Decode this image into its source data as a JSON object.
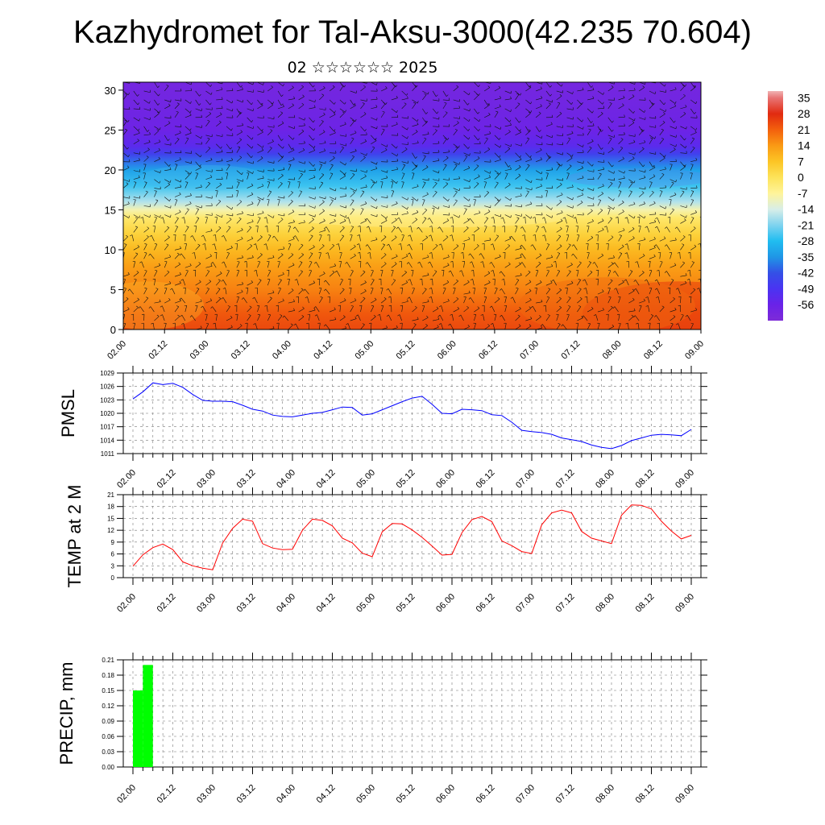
{
  "title": "Kazhydromet for Tal-Aksu-3000(42.235 70.604)",
  "subtitle": "02 ☆☆☆☆☆☆ 2025",
  "time_labels": [
    "02.00",
    "02.12",
    "03.00",
    "03.12",
    "04.00",
    "04.12",
    "05.00",
    "05.12",
    "06.00",
    "06.12",
    "07.00",
    "07.12",
    "08.00",
    "08.12",
    "09.00"
  ],
  "chart_data": [
    {
      "type": "heatmap",
      "name": "vertical cross-section",
      "xlabel": "",
      "ylabel": "",
      "ylim": [
        0,
        31
      ],
      "yticks": [
        0,
        5,
        10,
        15,
        20,
        25,
        30
      ],
      "colorbar": {
        "labels": [
          "35",
          "28",
          "21",
          "14",
          "7",
          "0",
          "-7",
          "-14",
          "-21",
          "-28",
          "-35",
          "-42",
          "-49",
          "-56"
        ],
        "range": [
          -63,
          38
        ]
      },
      "overlay": "wind barbs"
    },
    {
      "type": "line",
      "ylabel": "PMSL",
      "ylim": [
        1011,
        1029
      ],
      "yticks": [
        1011,
        1014,
        1017,
        1020,
        1023,
        1026,
        1029
      ],
      "color": "#0000ff",
      "x": [
        0,
        3,
        6,
        9,
        12,
        15,
        18,
        21,
        24,
        27,
        30,
        33,
        36,
        39,
        42,
        45,
        48,
        51,
        54,
        57,
        60,
        63,
        66,
        69,
        72,
        75,
        78,
        81,
        84,
        87,
        90,
        93,
        96,
        99,
        102,
        105,
        108,
        111,
        114,
        117,
        120,
        123,
        126,
        129,
        132,
        135,
        138,
        141,
        144,
        147,
        150,
        153,
        156,
        159,
        162,
        165,
        168
      ],
      "values": [
        1023.2,
        1024.8,
        1026.8,
        1026.4,
        1026.7,
        1025.8,
        1024.2,
        1022.9,
        1022.7,
        1022.7,
        1022.6,
        1021.8,
        1020.9,
        1020.5,
        1019.6,
        1019.3,
        1019.2,
        1019.6,
        1020.0,
        1020.2,
        1020.8,
        1021.4,
        1021.3,
        1019.6,
        1019.9,
        1020.8,
        1021.7,
        1022.6,
        1023.4,
        1023.8,
        1022.0,
        1020.0,
        1019.9,
        1020.9,
        1020.8,
        1020.6,
        1019.7,
        1019.5,
        1018.0,
        1016.2,
        1015.9,
        1015.7,
        1015.3,
        1014.5,
        1014.1,
        1013.7,
        1012.9,
        1012.4,
        1012.1,
        1012.8,
        1013.9,
        1014.5,
        1015.1,
        1015.3,
        1015.2,
        1015.0,
        1016.4
      ]
    },
    {
      "type": "line",
      "ylabel": "TEMP at 2 M",
      "ylim": [
        0,
        21
      ],
      "yticks": [
        0,
        3,
        6,
        9,
        12,
        15,
        18,
        21
      ],
      "color": "#ff0000",
      "x": [
        0,
        3,
        6,
        9,
        12,
        15,
        18,
        21,
        24,
        27,
        30,
        33,
        36,
        39,
        42,
        45,
        48,
        51,
        54,
        57,
        60,
        63,
        66,
        69,
        72,
        75,
        78,
        81,
        84,
        87,
        90,
        93,
        96,
        99,
        102,
        105,
        108,
        111,
        114,
        117,
        120,
        123,
        126,
        129,
        132,
        135,
        138,
        141,
        144,
        147,
        150,
        153,
        156,
        159,
        162,
        165,
        168
      ],
      "values": [
        2.9,
        5.8,
        7.6,
        8.5,
        7.1,
        4.0,
        3.0,
        2.4,
        2.0,
        8.8,
        12.5,
        14.8,
        14.3,
        8.6,
        7.5,
        7.1,
        7.2,
        12.0,
        14.8,
        14.5,
        13.1,
        10.0,
        8.8,
        6.2,
        5.3,
        11.6,
        13.7,
        13.6,
        12.1,
        10.2,
        8.0,
        5.7,
        5.9,
        11.4,
        14.7,
        15.5,
        14.2,
        9.3,
        8.1,
        6.6,
        6.1,
        13.4,
        16.4,
        17.1,
        16.4,
        11.7,
        10.0,
        9.3,
        8.6,
        15.8,
        18.4,
        18.3,
        17.4,
        14.3,
        11.8,
        9.8,
        10.7
      ]
    },
    {
      "type": "bar",
      "ylabel": "PRECIP, mm",
      "ylim": [
        0,
        0.21
      ],
      "yticks": [
        0,
        0.03,
        0.06,
        0.09,
        0.12,
        0.15,
        0.18,
        0.21
      ],
      "color": "#00ff00",
      "bars": [
        {
          "x0": 0,
          "x1": 3,
          "value": 0.15
        },
        {
          "x0": 3,
          "x1": 6,
          "value": 0.2
        }
      ]
    }
  ]
}
